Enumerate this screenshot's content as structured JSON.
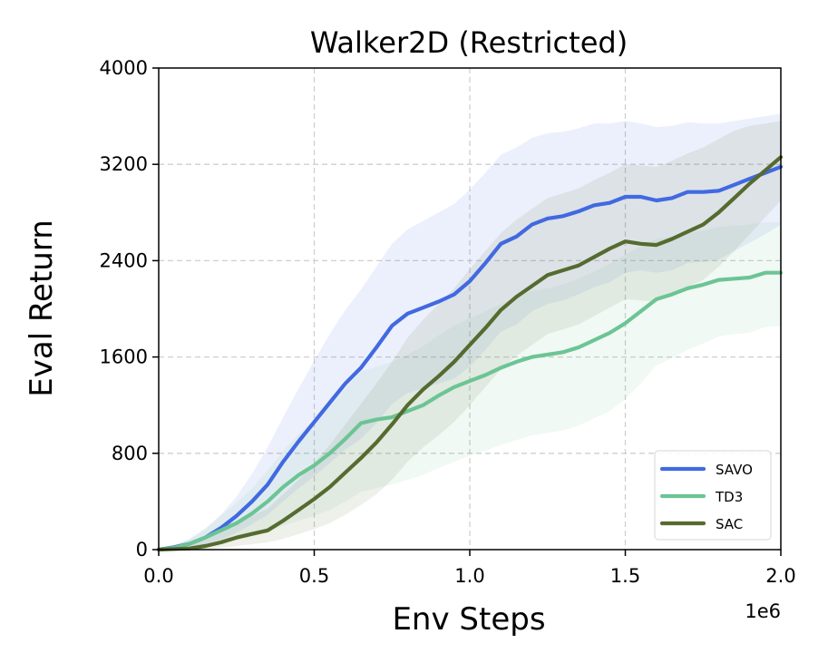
{
  "chart_data": {
    "type": "line",
    "title": "Walker2D (Restricted)",
    "xlabel": "Env Steps",
    "ylabel": "Eval Return",
    "x_offset_label": "1e6",
    "xlim": [
      0,
      2.0
    ],
    "ylim": [
      0,
      4000
    ],
    "xticks": [
      0.0,
      0.5,
      1.0,
      1.5,
      2.0
    ],
    "xtick_labels": [
      "0.0",
      "0.5",
      "1.0",
      "1.5",
      "2.0"
    ],
    "yticks": [
      0,
      800,
      1600,
      2400,
      3200,
      4000
    ],
    "ytick_labels": [
      "0",
      "800",
      "1600",
      "2400",
      "3200",
      "4000"
    ],
    "grid": true,
    "legend_position": "bottom-right",
    "series": [
      {
        "name": "SAVO",
        "color": "#4169e1",
        "x": [
          0.0,
          0.05,
          0.1,
          0.15,
          0.2,
          0.25,
          0.3,
          0.35,
          0.4,
          0.45,
          0.5,
          0.55,
          0.6,
          0.65,
          0.7,
          0.75,
          0.8,
          0.85,
          0.9,
          0.95,
          1.0,
          1.05,
          1.1,
          1.15,
          1.2,
          1.25,
          1.3,
          1.35,
          1.4,
          1.45,
          1.5,
          1.55,
          1.6,
          1.65,
          1.7,
          1.75,
          1.8,
          1.85,
          1.9,
          1.95,
          2.0
        ],
        "y": [
          0,
          20,
          50,
          100,
          180,
          280,
          400,
          540,
          730,
          900,
          1060,
          1220,
          1380,
          1510,
          1680,
          1860,
          1960,
          2010,
          2060,
          2120,
          2230,
          2380,
          2540,
          2600,
          2700,
          2750,
          2770,
          2810,
          2860,
          2880,
          2930,
          2930,
          2900,
          2920,
          2970,
          2970,
          2980,
          3030,
          3080,
          3130,
          3180
        ],
        "upper": [
          0,
          40,
          90,
          170,
          290,
          440,
          630,
          850,
          1100,
          1340,
          1570,
          1790,
          1990,
          2160,
          2350,
          2540,
          2660,
          2730,
          2800,
          2870,
          2990,
          3130,
          3280,
          3340,
          3420,
          3460,
          3470,
          3500,
          3540,
          3540,
          3560,
          3540,
          3510,
          3520,
          3550,
          3540,
          3540,
          3560,
          3580,
          3600,
          3620
        ],
        "lower": [
          0,
          5,
          20,
          45,
          85,
          140,
          210,
          290,
          400,
          510,
          610,
          720,
          830,
          920,
          1050,
          1210,
          1300,
          1340,
          1380,
          1420,
          1520,
          1660,
          1810,
          1870,
          1980,
          2040,
          2070,
          2120,
          2180,
          2220,
          2300,
          2320,
          2300,
          2320,
          2380,
          2390,
          2410,
          2480,
          2550,
          2620,
          2700
        ]
      },
      {
        "name": "TD3",
        "color": "#6cc494",
        "x": [
          0.0,
          0.05,
          0.1,
          0.15,
          0.2,
          0.25,
          0.3,
          0.35,
          0.4,
          0.45,
          0.5,
          0.55,
          0.6,
          0.65,
          0.7,
          0.75,
          0.8,
          0.85,
          0.9,
          0.95,
          1.0,
          1.05,
          1.1,
          1.15,
          1.2,
          1.25,
          1.3,
          1.35,
          1.4,
          1.45,
          1.5,
          1.55,
          1.6,
          1.65,
          1.7,
          1.75,
          1.8,
          1.85,
          1.9,
          1.95,
          2.0
        ],
        "y": [
          0,
          15,
          50,
          100,
          160,
          220,
          300,
          400,
          520,
          620,
          700,
          800,
          920,
          1050,
          1080,
          1100,
          1150,
          1200,
          1280,
          1350,
          1400,
          1450,
          1510,
          1560,
          1600,
          1620,
          1640,
          1680,
          1740,
          1800,
          1880,
          1980,
          2080,
          2120,
          2170,
          2200,
          2240,
          2250,
          2260,
          2300,
          2300
        ],
        "upper": [
          0,
          30,
          90,
          180,
          280,
          390,
          510,
          660,
          820,
          960,
          1080,
          1200,
          1340,
          1480,
          1520,
          1560,
          1620,
          1690,
          1780,
          1860,
          1920,
          1980,
          2040,
          2100,
          2150,
          2170,
          2200,
          2250,
          2310,
          2370,
          2450,
          2520,
          2580,
          2600,
          2630,
          2650,
          2680,
          2690,
          2700,
          2720,
          2720
        ],
        "lower": [
          0,
          5,
          15,
          35,
          60,
          80,
          110,
          150,
          200,
          240,
          280,
          330,
          400,
          480,
          510,
          540,
          580,
          620,
          680,
          730,
          780,
          820,
          870,
          910,
          950,
          970,
          990,
          1030,
          1090,
          1150,
          1250,
          1380,
          1530,
          1590,
          1660,
          1710,
          1770,
          1790,
          1800,
          1850,
          1860
        ]
      },
      {
        "name": "SAC",
        "color": "#556b2f",
        "x": [
          0.0,
          0.05,
          0.1,
          0.15,
          0.2,
          0.25,
          0.3,
          0.35,
          0.4,
          0.45,
          0.5,
          0.55,
          0.6,
          0.65,
          0.7,
          0.75,
          0.8,
          0.85,
          0.9,
          0.95,
          1.0,
          1.05,
          1.1,
          1.15,
          1.2,
          1.25,
          1.3,
          1.35,
          1.4,
          1.45,
          1.5,
          1.55,
          1.6,
          1.65,
          1.7,
          1.75,
          1.8,
          1.85,
          1.9,
          1.95,
          2.0
        ],
        "y": [
          0,
          5,
          10,
          30,
          60,
          100,
          130,
          160,
          240,
          330,
          420,
          520,
          640,
          760,
          890,
          1040,
          1200,
          1330,
          1440,
          1560,
          1700,
          1840,
          1990,
          2100,
          2190,
          2280,
          2320,
          2360,
          2430,
          2500,
          2560,
          2540,
          2530,
          2580,
          2640,
          2700,
          2800,
          2920,
          3040,
          3150,
          3260
        ],
        "upper": [
          0,
          20,
          40,
          80,
          140,
          210,
          280,
          340,
          460,
          580,
          720,
          870,
          1040,
          1210,
          1380,
          1560,
          1760,
          1910,
          2040,
          2170,
          2330,
          2480,
          2630,
          2740,
          2830,
          2920,
          2960,
          3000,
          3070,
          3130,
          3200,
          3190,
          3180,
          3230,
          3290,
          3340,
          3410,
          3480,
          3520,
          3540,
          3560
        ],
        "lower": [
          0,
          0,
          0,
          5,
          15,
          30,
          45,
          60,
          90,
          130,
          170,
          220,
          290,
          370,
          460,
          580,
          730,
          850,
          950,
          1060,
          1200,
          1350,
          1500,
          1610,
          1700,
          1790,
          1830,
          1870,
          1940,
          2010,
          2080,
          2070,
          2060,
          2120,
          2180,
          2240,
          2350,
          2480,
          2620,
          2760,
          2900
        ]
      }
    ]
  }
}
